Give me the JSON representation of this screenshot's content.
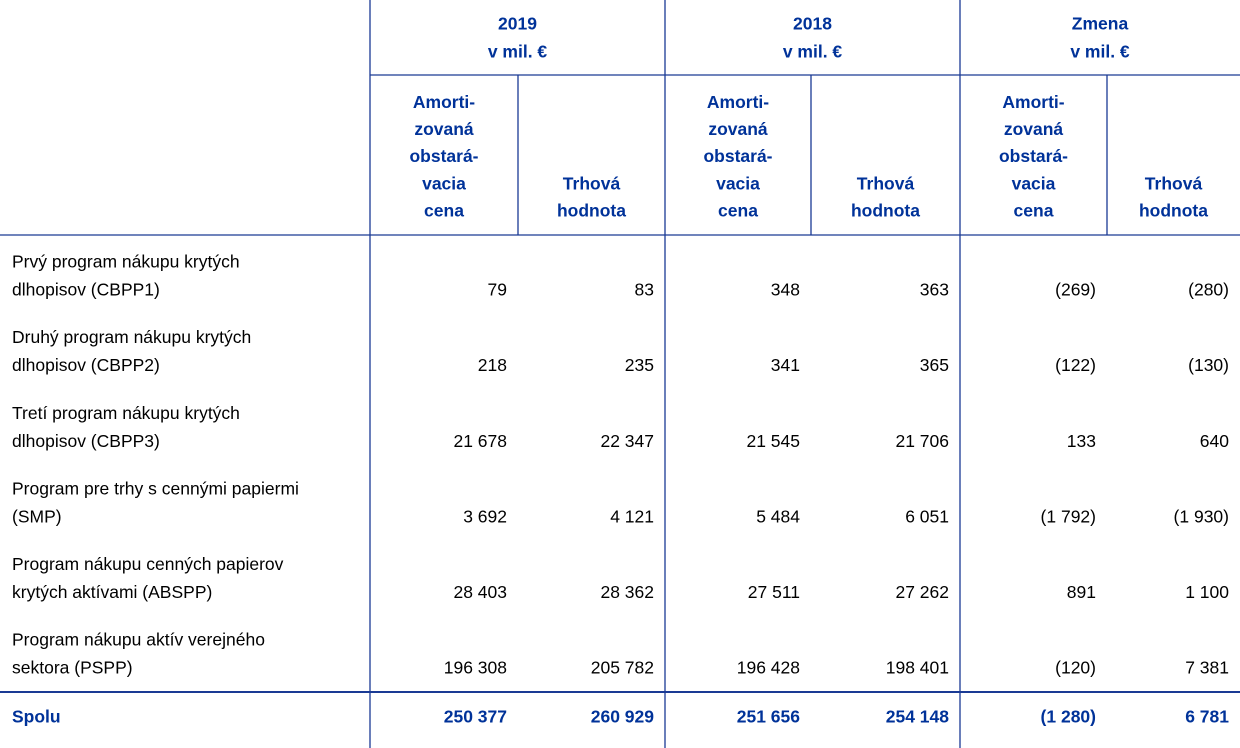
{
  "table": {
    "column_groups": [
      {
        "lines": [
          "2019",
          "v mil. €"
        ]
      },
      {
        "lines": [
          "2018",
          "v mil. €"
        ]
      },
      {
        "lines": [
          "Zmena",
          "v mil. €"
        ]
      }
    ],
    "subcolumns": [
      {
        "lines": [
          "Amorti-",
          "zovaná",
          "obstará-",
          "vacia",
          "cena"
        ]
      },
      {
        "lines": [
          "Trhová",
          "hodnota"
        ]
      }
    ],
    "rows": [
      {
        "label": [
          "Prvý program nákupu krytých",
          "dlhopisov (CBPP1)"
        ],
        "cells": [
          "79",
          "83",
          "348",
          "363",
          "(269)",
          "(280)"
        ]
      },
      {
        "label": [
          "Druhý program nákupu krytých",
          "dlhopisov (CBPP2)"
        ],
        "cells": [
          "218",
          "235",
          "341",
          "365",
          "(122)",
          "(130)"
        ]
      },
      {
        "label": [
          "Tretí program nákupu krytých",
          "dlhopisov (CBPP3)"
        ],
        "cells": [
          "21 678",
          "22 347",
          "21 545",
          "21 706",
          "133",
          "640"
        ]
      },
      {
        "label": [
          "Program pre trhy s cennými papiermi",
          "(SMP)"
        ],
        "cells": [
          "3 692",
          "4 121",
          "5 484",
          "6 051",
          "(1 792)",
          "(1 930)"
        ]
      },
      {
        "label": [
          "Program nákupu cenných papierov",
          "krytých aktívami (ABSPP)"
        ],
        "cells": [
          "28 403",
          "28 362",
          "27 511",
          "27 262",
          "891",
          "1 100"
        ]
      },
      {
        "label": [
          "Program nákupu aktív verejného",
          "sektora (PSPP)"
        ],
        "cells": [
          "196 308",
          "205 782",
          "196 428",
          "198 401",
          "(120)",
          "7 381"
        ]
      }
    ],
    "total": {
      "label": "Spolu",
      "cells": [
        "250 377",
        "260 929",
        "251 656",
        "254 148",
        "(1 280)",
        "6 781"
      ]
    }
  }
}
